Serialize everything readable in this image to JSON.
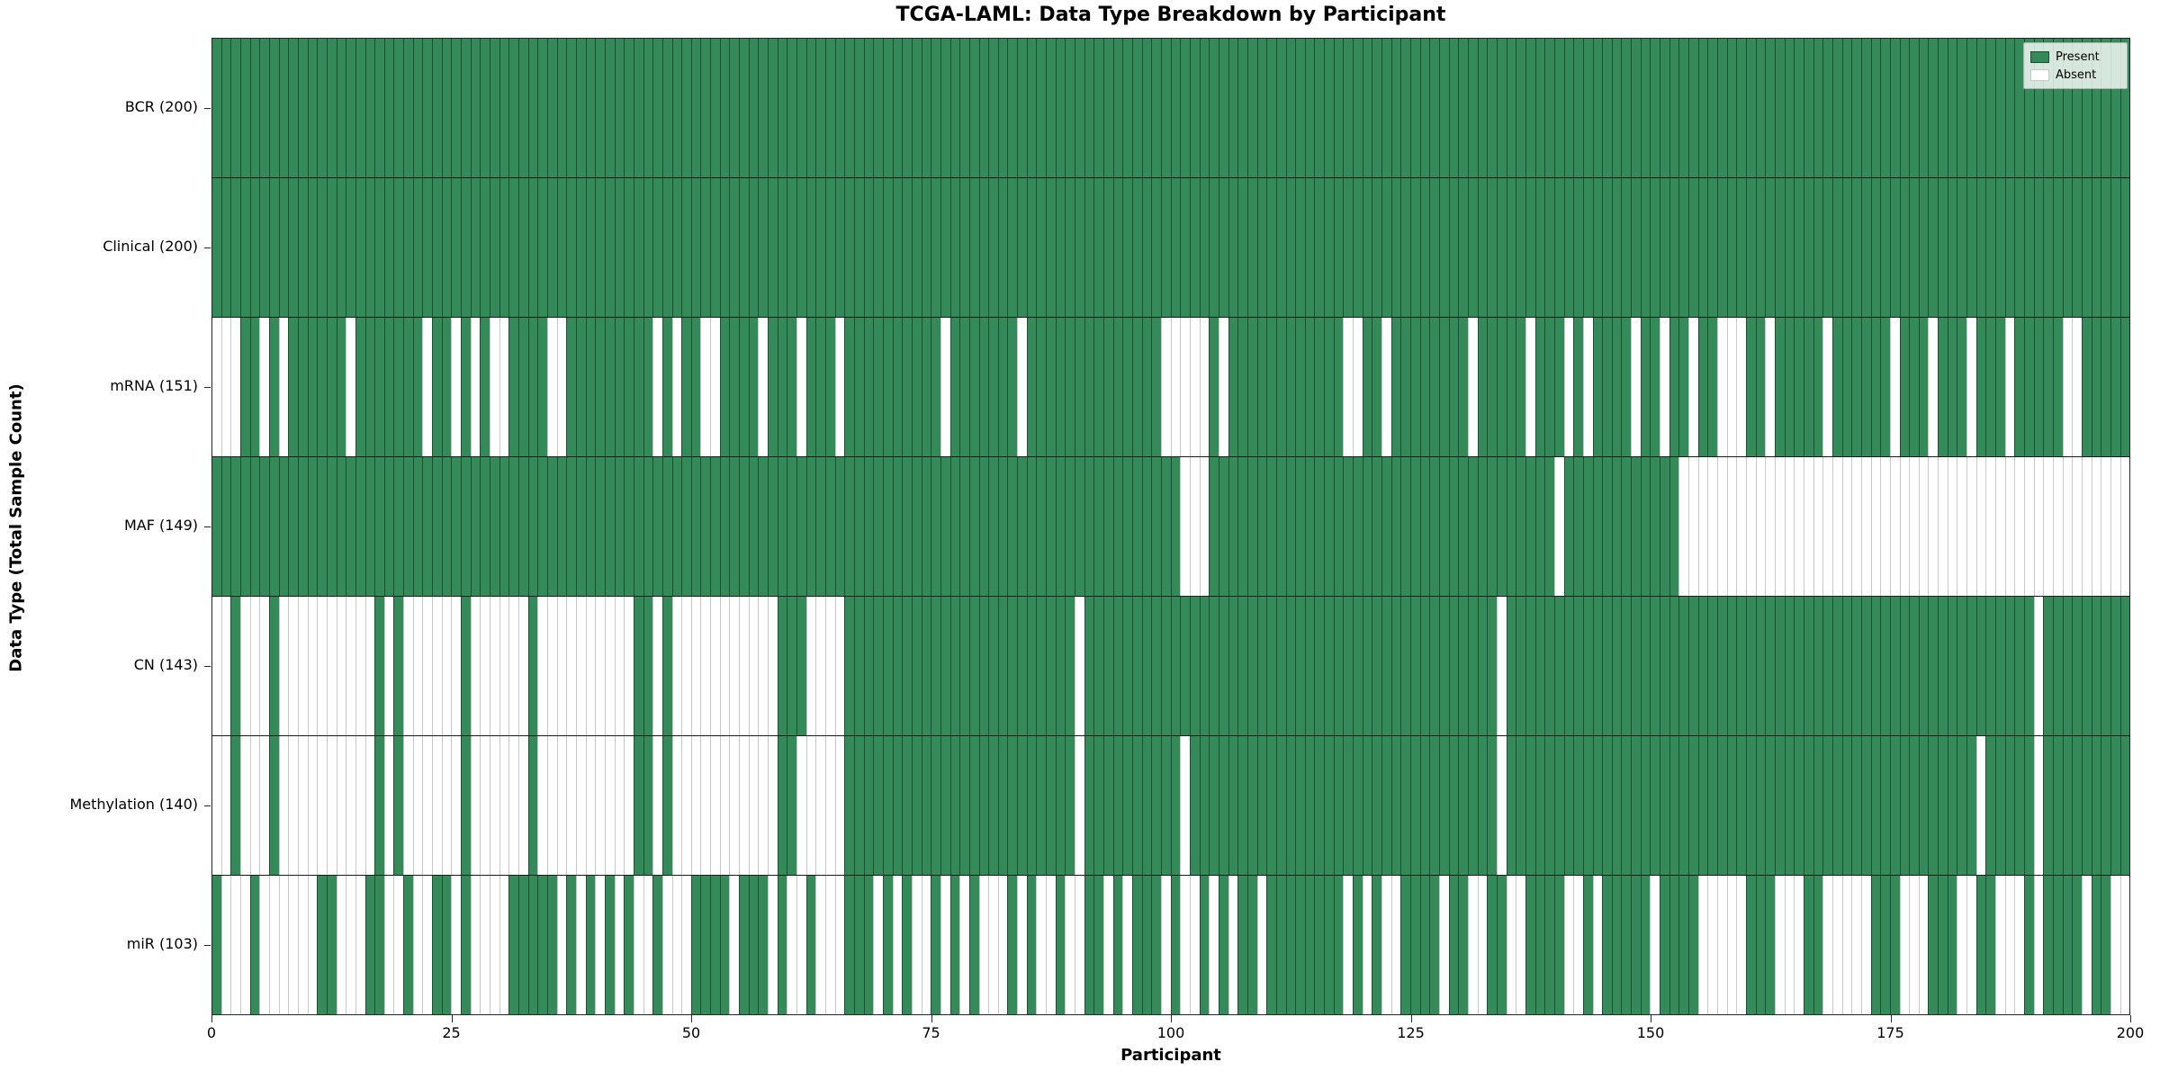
{
  "title": "TCGA-LAML: Data Type Breakdown by Participant",
  "axes": {
    "xlabel": "Participant",
    "ylabel": "Data Type (Total Sample Count)",
    "x_ticks": [
      0,
      25,
      50,
      75,
      100,
      125,
      150,
      175,
      200
    ]
  },
  "legend": {
    "items": [
      {
        "label": "Present",
        "color": "#348a58",
        "border": "#1d4f33"
      },
      {
        "label": "Absent",
        "color": "#ffffff",
        "border": "#c9c9c9"
      }
    ]
  },
  "colors": {
    "present": "#348a58",
    "present_edge": "#1d4f33",
    "absent": "#ffffff",
    "absent_edge": "#c9c9c9",
    "row_divider": "#1a1a1a",
    "spine": "#262626",
    "background": "#ffffff"
  },
  "chart_data": {
    "type": "heatmap",
    "x_range": [
      0,
      200
    ],
    "n_participants": 200,
    "cell_values": {
      "present": "Present",
      "absent": "Absent"
    },
    "rows": [
      {
        "label": "BCR (200)",
        "name": "BCR",
        "present_count": 200,
        "absent_participants": []
      },
      {
        "label": "Clinical (200)",
        "name": "Clinical",
        "present_count": 200,
        "absent_participants": []
      },
      {
        "label": "mRNA (151)",
        "name": "mRNA",
        "present_count": 151,
        "absent_participants": [
          0,
          1,
          2,
          5,
          7,
          14,
          22,
          25,
          27,
          29,
          30,
          35,
          36,
          46,
          48,
          51,
          52,
          57,
          61,
          65,
          76,
          84,
          99,
          100,
          101,
          102,
          103,
          105,
          118,
          119,
          122,
          131,
          137,
          141,
          143,
          148,
          151,
          154,
          157,
          158,
          159,
          162,
          168,
          175,
          179,
          183,
          187,
          193,
          194
        ]
      },
      {
        "label": "MAF (149)",
        "name": "MAF",
        "present_count": 149,
        "absent_participants": [
          101,
          102,
          103,
          140,
          153,
          154,
          155,
          156,
          157,
          158,
          159,
          160,
          161,
          162,
          163,
          164,
          165,
          166,
          167,
          168,
          169,
          170,
          171,
          172,
          173,
          174,
          175,
          176,
          177,
          178,
          179,
          180,
          181,
          182,
          183,
          184,
          185,
          186,
          187,
          188,
          189,
          190,
          191,
          192,
          193,
          194,
          195,
          196,
          197,
          198,
          199
        ]
      },
      {
        "label": "CN (143)",
        "name": "CN",
        "present_count": 143,
        "absent_participants": [
          0,
          1,
          3,
          4,
          5,
          7,
          8,
          9,
          10,
          11,
          12,
          13,
          14,
          15,
          16,
          18,
          20,
          21,
          22,
          23,
          24,
          25,
          27,
          28,
          29,
          30,
          31,
          32,
          34,
          35,
          36,
          37,
          38,
          39,
          40,
          41,
          42,
          43,
          46,
          48,
          49,
          50,
          51,
          52,
          53,
          54,
          55,
          56,
          57,
          58,
          62,
          63,
          64,
          65,
          90,
          134,
          190
        ]
      },
      {
        "label": "Methylation (140)",
        "name": "Methylation",
        "present_count": 140,
        "absent_participants": [
          0,
          1,
          3,
          4,
          5,
          7,
          8,
          9,
          10,
          11,
          12,
          13,
          14,
          15,
          16,
          18,
          20,
          21,
          22,
          23,
          24,
          25,
          27,
          28,
          29,
          30,
          31,
          32,
          34,
          35,
          36,
          37,
          38,
          39,
          40,
          41,
          42,
          43,
          46,
          48,
          49,
          50,
          51,
          52,
          53,
          54,
          55,
          56,
          57,
          58,
          61,
          62,
          63,
          64,
          65,
          90,
          101,
          134,
          184,
          190
        ]
      },
      {
        "label": "miR (103)",
        "name": "miR",
        "present_count": 103,
        "absent_participants": [
          1,
          2,
          3,
          5,
          6,
          7,
          8,
          9,
          10,
          13,
          14,
          15,
          18,
          19,
          21,
          22,
          25,
          27,
          28,
          29,
          30,
          36,
          38,
          40,
          42,
          44,
          45,
          47,
          48,
          49,
          54,
          58,
          60,
          61,
          63,
          64,
          65,
          69,
          71,
          73,
          74,
          76,
          78,
          80,
          81,
          82,
          84,
          86,
          87,
          89,
          90,
          93,
          95,
          99,
          101,
          102,
          104,
          106,
          109,
          118,
          120,
          122,
          123,
          128,
          131,
          132,
          135,
          136,
          141,
          142,
          144,
          150,
          155,
          156,
          157,
          158,
          159,
          163,
          164,
          165,
          168,
          169,
          170,
          171,
          172,
          176,
          177,
          178,
          182,
          183,
          186,
          187,
          188,
          190,
          195,
          198,
          199
        ]
      }
    ]
  }
}
